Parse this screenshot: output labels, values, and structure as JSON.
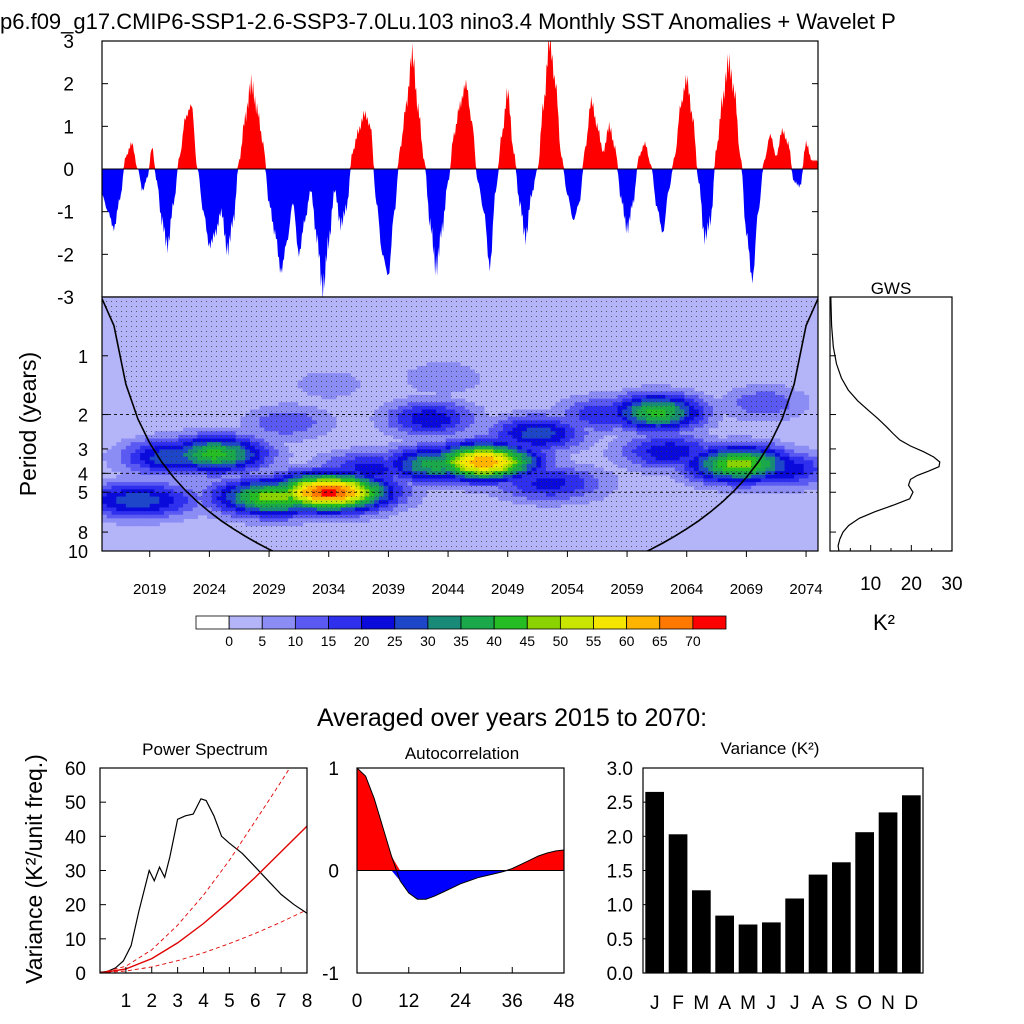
{
  "figure": {
    "title": "p6.f09_g17.CMIP6-SSP1-2.6-SSP3-7.0Lu.103 nino3.4 Monthly SST Anomalies + Wavelet P",
    "subtitle": "Averaged over years 2015 to 2070:"
  },
  "chart_data": [
    {
      "id": "sst-anomaly",
      "type": "area",
      "title": "p6.f09_g17.CMIP6-SSP1-2.6-SSP3-7.0Lu.103 nino3.4 Monthly SST Anomalies + Wavelet P",
      "ylim": [
        -3,
        3
      ],
      "xlim": [
        2015,
        2075
      ],
      "yticks": [
        "3",
        "2",
        "1",
        "0",
        "-1",
        "-2",
        "-3"
      ],
      "colors": {
        "positive": "#ff0000",
        "negative": "#0000ff"
      },
      "x": [
        2015.0,
        2015.5,
        2016.0,
        2016.5,
        2017.0,
        2017.5,
        2018.0,
        2018.4,
        2018.8,
        2019.2,
        2019.6,
        2020.0,
        2020.5,
        2021.0,
        2021.5,
        2022.0,
        2022.5,
        2023.0,
        2023.5,
        2024.0,
        2024.5,
        2025.0,
        2025.5,
        2026.0,
        2026.5,
        2027.0,
        2027.5,
        2028.0,
        2028.5,
        2029.0,
        2029.5,
        2030.0,
        2030.5,
        2031.0,
        2031.5,
        2032.0,
        2032.5,
        2033.0,
        2033.5,
        2034.0,
        2034.5,
        2035.0,
        2035.5,
        2036.0,
        2036.5,
        2037.0,
        2037.5,
        2038.0,
        2038.5,
        2039.0,
        2039.5,
        2040.0,
        2040.5,
        2041.0,
        2041.5,
        2042.0,
        2042.5,
        2043.0,
        2043.5,
        2044.0,
        2044.5,
        2045.0,
        2045.5,
        2046.0,
        2046.5,
        2047.0,
        2047.5,
        2048.0,
        2048.5,
        2049.0,
        2049.5,
        2050.0,
        2050.5,
        2051.0,
        2051.5,
        2052.0,
        2052.5,
        2053.0,
        2053.5,
        2054.0,
        2054.5,
        2055.0,
        2055.5,
        2056.0,
        2056.5,
        2057.0,
        2057.5,
        2058.0,
        2058.5,
        2059.0,
        2059.5,
        2060.0,
        2060.5,
        2061.0,
        2061.5,
        2062.0,
        2062.5,
        2063.0,
        2063.5,
        2064.0,
        2064.5,
        2065.0,
        2065.5,
        2066.0,
        2066.5,
        2067.0,
        2067.5,
        2068.0,
        2068.5,
        2069.0,
        2069.5,
        2070.0,
        2070.5,
        2071.0,
        2071.5,
        2072.0,
        2072.5,
        2073.0,
        2073.5,
        2074.0,
        2074.5,
        2075.0
      ],
      "values": [
        -0.6,
        -1.0,
        -1.4,
        -0.7,
        0.3,
        0.6,
        0.0,
        -0.5,
        -0.2,
        0.5,
        -0.3,
        -1.2,
        -1.8,
        -0.8,
        0.3,
        1.2,
        1.5,
        0.0,
        -1.0,
        -1.8,
        -1.5,
        -1.0,
        -1.9,
        -1.2,
        0.2,
        1.2,
        2.0,
        1.4,
        0.6,
        -0.8,
        -1.5,
        -2.4,
        -1.7,
        -0.8,
        -2.0,
        -1.2,
        -0.5,
        -1.6,
        -2.8,
        -1.7,
        -0.5,
        -1.3,
        -0.9,
        0.4,
        0.9,
        1.3,
        1.0,
        -0.8,
        -2.0,
        -2.5,
        -1.0,
        0.5,
        1.5,
        2.7,
        1.4,
        0.2,
        -1.3,
        -2.3,
        -1.4,
        -0.3,
        0.8,
        1.5,
        2.0,
        1.1,
        -0.3,
        -1.0,
        -2.3,
        -0.5,
        0.8,
        1.8,
        0.4,
        -0.8,
        -1.6,
        -0.6,
        0.0,
        1.5,
        3.0,
        2.0,
        0.3,
        -0.6,
        -1.2,
        -0.8,
        0.5,
        1.6,
        1.0,
        0.4,
        1.0,
        0.5,
        -0.7,
        -1.4,
        -0.8,
        0.3,
        0.6,
        0.1,
        -0.9,
        -1.5,
        -0.5,
        0.3,
        1.5,
        2.1,
        1.2,
        -0.3,
        -1.6,
        -1.2,
        0.5,
        1.6,
        2.5,
        1.8,
        0.3,
        -1.5,
        -2.6,
        -1.0,
        0.2,
        0.8,
        0.3,
        0.9,
        0.6,
        -0.3,
        -0.4,
        0.6,
        0.2,
        0.2
      ]
    },
    {
      "id": "wavelet-power",
      "type": "heatmap",
      "title": "Period (years)",
      "ylabel": "Period (years)",
      "ylim": [
        0.5,
        10
      ],
      "yscale": "log",
      "xlim": [
        2015,
        2075
      ],
      "x_ticks": [
        "2019",
        "2024",
        "2029",
        "2034",
        "2039",
        "2044",
        "2049",
        "2054",
        "2059",
        "2064",
        "2069",
        "2074"
      ],
      "y_ticks": [
        "1",
        "2",
        "3",
        "4",
        "5",
        "8",
        "10"
      ],
      "significant_periods": [
        2,
        4,
        5
      ],
      "levels": [
        "0",
        "5",
        "10",
        "15",
        "20",
        "25",
        "30",
        "35",
        "40",
        "45",
        "50",
        "55",
        "60",
        "65",
        "70"
      ],
      "level_colors": [
        "#ffffff",
        "#b4b4f8",
        "#8c8cf5",
        "#5a5af2",
        "#2f2fee",
        "#0a0adb",
        "#1e46c8",
        "#1a8a78",
        "#1aa84a",
        "#26bd24",
        "#8ad200",
        "#c8e600",
        "#f5e600",
        "#ffb400",
        "#ff7800",
        "#ff0000"
      ],
      "blobs": [
        {
          "year": 2034.0,
          "period": 5.0,
          "power": 72
        },
        {
          "year": 2029.5,
          "period": 5.3,
          "power": 48
        },
        {
          "year": 2024.5,
          "period": 3.2,
          "power": 42
        },
        {
          "year": 2021.0,
          "period": 3.3,
          "power": 30
        },
        {
          "year": 2018.0,
          "period": 5.5,
          "power": 28
        },
        {
          "year": 2047.0,
          "period": 3.5,
          "power": 65
        },
        {
          "year": 2043.0,
          "period": 3.6,
          "power": 38
        },
        {
          "year": 2042.5,
          "period": 2.1,
          "power": 24
        },
        {
          "year": 2051.5,
          "period": 2.5,
          "power": 28
        },
        {
          "year": 2052.5,
          "period": 4.5,
          "power": 22
        },
        {
          "year": 2057.0,
          "period": 2.0,
          "power": 20
        },
        {
          "year": 2061.5,
          "period": 1.95,
          "power": 42
        },
        {
          "year": 2062.5,
          "period": 3.1,
          "power": 24
        },
        {
          "year": 2068.5,
          "period": 3.6,
          "power": 48
        },
        {
          "year": 2071.5,
          "period": 3.8,
          "power": 26
        },
        {
          "year": 2070.5,
          "period": 1.75,
          "power": 14
        },
        {
          "year": 2037.5,
          "period": 3.8,
          "power": 22
        },
        {
          "year": 2030.5,
          "period": 2.2,
          "power": 14
        },
        {
          "year": 2043.5,
          "period": 1.3,
          "power": 10
        },
        {
          "year": 2034.0,
          "period": 1.4,
          "power": 8
        }
      ]
    },
    {
      "id": "gws",
      "type": "line",
      "title": "GWS",
      "xlabel": "K²",
      "xlim": [
        0,
        30
      ],
      "x_ticks": [
        "10",
        "20",
        "30"
      ],
      "period": [
        0.5,
        0.7,
        0.9,
        1.1,
        1.3,
        1.5,
        1.7,
        1.9,
        2.1,
        2.3,
        2.5,
        2.7,
        2.9,
        3.1,
        3.3,
        3.5,
        3.7,
        3.9,
        4.1,
        4.3,
        4.6,
        5.0,
        5.4,
        5.8,
        6.3,
        6.8,
        7.4,
        8.0,
        8.7,
        9.4,
        10.0
      ],
      "power": [
        0.2,
        0.4,
        0.8,
        1.6,
        2.8,
        4.5,
        6.8,
        9.4,
        11.8,
        13.8,
        15.5,
        17.2,
        19.8,
        23.0,
        25.5,
        27.0,
        26.8,
        24.2,
        21.5,
        19.8,
        19.3,
        20.4,
        19.6,
        15.8,
        11.0,
        7.2,
        4.6,
        3.2,
        2.4,
        2.0,
        2.2
      ]
    },
    {
      "id": "power-spectrum",
      "type": "line",
      "title": "Power Spectrum",
      "ylabel": "Variance (K²/unit freq.)",
      "ylim": [
        0,
        60
      ],
      "xlim": [
        0,
        8
      ],
      "x_ticks": [
        "1",
        "2",
        "3",
        "4",
        "5",
        "6",
        "7",
        "8"
      ],
      "y_ticks": [
        "0",
        "10",
        "20",
        "30",
        "40",
        "50",
        "60"
      ],
      "series": [
        {
          "x": [
            0.0,
            0.3,
            0.6,
            0.9,
            1.2,
            1.5,
            1.7,
            1.9,
            2.1,
            2.3,
            2.5,
            2.7,
            3.0,
            3.3,
            3.6,
            3.9,
            4.1,
            4.4,
            4.7,
            5.0,
            5.5,
            6.0,
            6.5,
            7.0,
            7.5,
            8.0
          ],
          "y": [
            0.2,
            0.5,
            1.5,
            3.5,
            8.0,
            18.0,
            24.0,
            30.0,
            27.0,
            31.0,
            28.0,
            34.0,
            45.0,
            46.0,
            46.5,
            51.0,
            50.5,
            46.0,
            40.0,
            38.0,
            35.0,
            31.0,
            27.0,
            23.0,
            20.0,
            17.5
          ]
        },
        {
          "x": [
            0,
            1,
            2,
            3,
            4,
            5,
            6,
            7,
            8
          ],
          "y": [
            0,
            1.2,
            4.2,
            8.8,
            14.5,
            21.0,
            28.0,
            35.5,
            43.0
          ]
        },
        {
          "x": [
            0,
            1,
            2,
            3,
            4,
            5,
            6,
            7,
            8
          ],
          "y": [
            0,
            2.0,
            6.8,
            14.0,
            22.8,
            33.0,
            44.5,
            56.0,
            68.0
          ]
        },
        {
          "x": [
            0,
            1,
            2,
            3,
            4,
            5,
            6,
            7,
            8
          ],
          "y": [
            0,
            0.6,
            1.8,
            3.6,
            5.9,
            8.6,
            11.6,
            14.9,
            18.5
          ]
        }
      ]
    },
    {
      "id": "autocorrelation",
      "type": "area",
      "title": "Autocorrelation",
      "ylim": [
        -1,
        1
      ],
      "xlim": [
        0,
        48
      ],
      "x_ticks": [
        "0",
        "12",
        "24",
        "36",
        "48"
      ],
      "y_ticks": [
        "1",
        "0",
        "-1"
      ],
      "lag": [
        0,
        2,
        4,
        6,
        8,
        10,
        12,
        14,
        16,
        18,
        20,
        22,
        24,
        26,
        28,
        30,
        32,
        34,
        36,
        38,
        40,
        42,
        44,
        46,
        48
      ],
      "r": [
        1.0,
        0.92,
        0.7,
        0.42,
        0.14,
        -0.1,
        -0.22,
        -0.28,
        -0.28,
        -0.25,
        -0.21,
        -0.17,
        -0.13,
        -0.1,
        -0.07,
        -0.05,
        -0.03,
        -0.01,
        0.02,
        0.06,
        0.1,
        0.14,
        0.17,
        0.19,
        0.2
      ]
    },
    {
      "id": "monthly-variance",
      "type": "bar",
      "title": "Variance (K²)",
      "ylim": [
        0,
        3
      ],
      "y_ticks": [
        "0.0",
        "0.5",
        "1.0",
        "1.5",
        "2.0",
        "2.5",
        "3.0"
      ],
      "categories": [
        "J",
        "F",
        "M",
        "A",
        "M",
        "J",
        "J",
        "A",
        "S",
        "O",
        "N",
        "D"
      ],
      "values": [
        2.65,
        2.03,
        1.21,
        0.84,
        0.71,
        0.74,
        1.09,
        1.44,
        1.62,
        2.06,
        2.35,
        2.6
      ]
    }
  ]
}
